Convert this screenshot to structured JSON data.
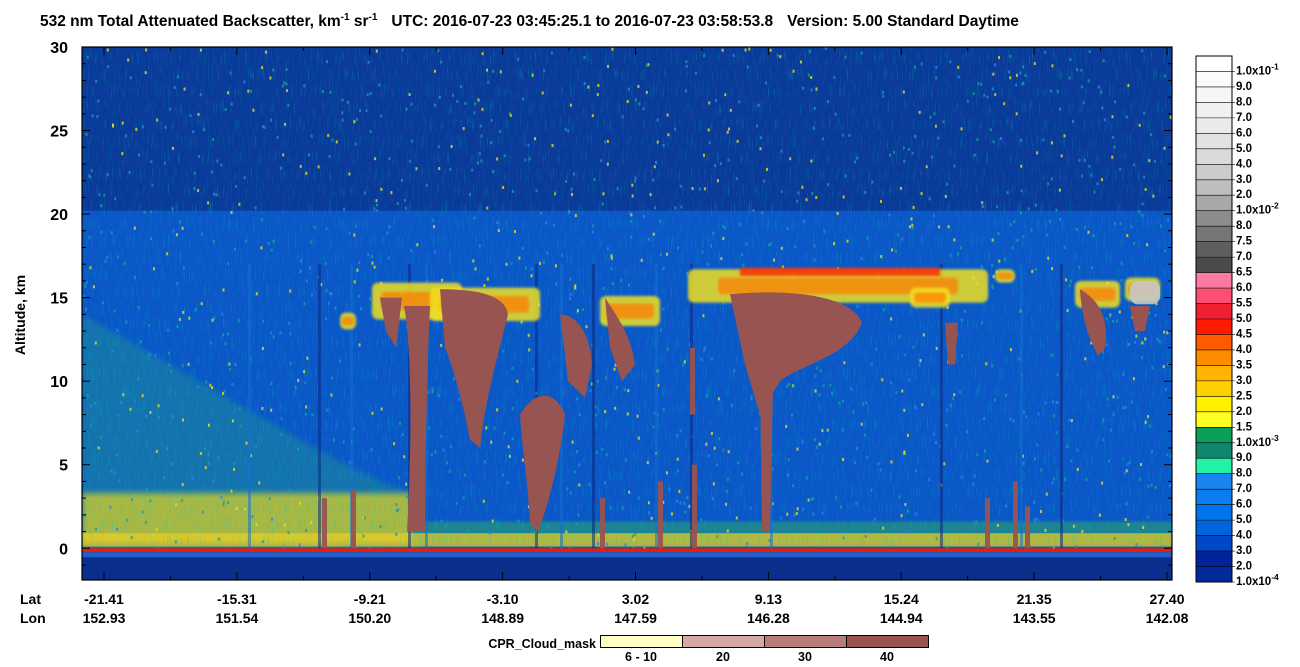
{
  "title": {
    "text_main": "532 nm Total Attenuated Backscatter, km",
    "exp1": "-1",
    "text_sr": " sr",
    "exp2": "-1",
    "utc": "UTC:  2016-07-23 03:45:25.1  to  2016-07-23 03:58:53.8",
    "version": "Version: 5.00  Standard  Daytime"
  },
  "axes": {
    "ylabel": "Altitude, km",
    "lat_label": "Lat",
    "lon_label": "Lon"
  },
  "chart_data": {
    "type": "heatmap",
    "title": "532 nm Total Attenuated Backscatter, km-1 sr-1",
    "ylabel": "Altitude, km",
    "ylim": [
      -1.9,
      30
    ],
    "yticks": [
      0,
      5,
      10,
      15,
      20,
      25,
      30
    ],
    "x_ticks": [
      {
        "lat": "-21.41",
        "lon": "152.93"
      },
      {
        "lat": "-15.31",
        "lon": "151.54"
      },
      {
        "lat": "-9.21",
        "lon": "150.20"
      },
      {
        "lat": "-3.10",
        "lon": "148.89"
      },
      {
        "lat": "3.02",
        "lon": "147.59"
      },
      {
        "lat": "9.13",
        "lon": "146.28"
      },
      {
        "lat": "15.24",
        "lon": "144.94"
      },
      {
        "lat": "21.35",
        "lon": "143.55"
      },
      {
        "lat": "27.40",
        "lon": "142.08"
      }
    ],
    "colorbar": [
      {
        "label": "1.0x10",
        "exp": "-4",
        "color": "#00299c"
      },
      {
        "label": "2.0",
        "color": "#00229a"
      },
      {
        "label": "3.0",
        "color": "#0048c8"
      },
      {
        "label": "4.0",
        "color": "#0064de"
      },
      {
        "label": "5.0",
        "color": "#0074ea"
      },
      {
        "label": "6.0",
        "color": "#0a7ef0"
      },
      {
        "label": "7.0",
        "color": "#1a84f0"
      },
      {
        "label": "8.0",
        "color": "#22f2a8"
      },
      {
        "label": "9.0",
        "color": "#10886e"
      },
      {
        "label": "1.0x10",
        "exp": "-3",
        "color": "#0a9e58"
      },
      {
        "label": "1.5",
        "color": "#ffff22"
      },
      {
        "label": "2.0",
        "color": "#fff000"
      },
      {
        "label": "2.5",
        "color": "#ffd000"
      },
      {
        "label": "3.0",
        "color": "#ffb400"
      },
      {
        "label": "3.5",
        "color": "#ff8c00"
      },
      {
        "label": "4.0",
        "color": "#ff5a00"
      },
      {
        "label": "4.5",
        "color": "#ff1a00"
      },
      {
        "label": "5.0",
        "color": "#f02030"
      },
      {
        "label": "5.5",
        "color": "#ff4e72"
      },
      {
        "label": "6.0",
        "color": "#ff7aa0"
      },
      {
        "label": "6.5",
        "color": "#4a4a4a"
      },
      {
        "label": "7.0",
        "color": "#5e5e5e"
      },
      {
        "label": "7.5",
        "color": "#767676"
      },
      {
        "label": "8.0",
        "color": "#8c8c8c"
      },
      {
        "label": "1.0x10",
        "exp": "-2",
        "color": "#a8a8a8"
      },
      {
        "label": "2.0",
        "color": "#bebebe"
      },
      {
        "label": "3.0",
        "color": "#cccccc"
      },
      {
        "label": "4.0",
        "color": "#dadada"
      },
      {
        "label": "5.0",
        "color": "#e2e2e2"
      },
      {
        "label": "6.0",
        "color": "#eaeaea"
      },
      {
        "label": "7.0",
        "color": "#f0f0f0"
      },
      {
        "label": "8.0",
        "color": "#f6f6f6"
      },
      {
        "label": "9.0",
        "color": "#fbfbfb"
      },
      {
        "label": "1.0x10",
        "exp": "-1",
        "color": "#ffffff"
      }
    ],
    "cpr_legend": {
      "title": "CPR_Cloud_mask",
      "items": [
        {
          "label": "6 - 10",
          "color": "#ffffc4"
        },
        {
          "label": "20",
          "color": "#d6a8a4"
        },
        {
          "label": "30",
          "color": "#ba7c7a"
        },
        {
          "label": "40",
          "color": "#985450"
        }
      ]
    }
  }
}
